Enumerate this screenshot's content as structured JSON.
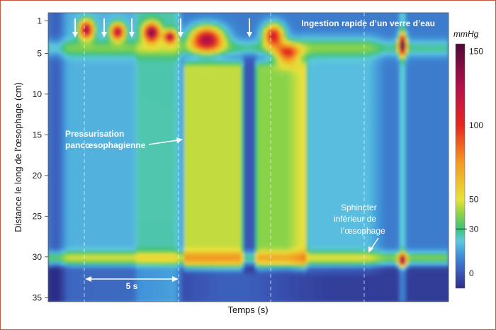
{
  "chart_data": {
    "type": "heatmap",
    "title": "Ingestion rapide d’un verre d’eau",
    "xlabel": "Temps (s)",
    "ylabel": "Distance le long de l’œsophage (cm)",
    "y_ticks": [
      1,
      5,
      10,
      15,
      20,
      25,
      30,
      35
    ],
    "ylim": [
      0,
      35.5
    ],
    "y_inverted": true,
    "colorbar": {
      "unit": "mmHg",
      "ticks": [
        0,
        30,
        50,
        100,
        150
      ],
      "range": [
        -10,
        155
      ],
      "stops": [
        {
          "v": -10,
          "c": "#2c2f86"
        },
        {
          "v": 0,
          "c": "#3a55b4"
        },
        {
          "v": 12,
          "c": "#3f8fd8"
        },
        {
          "v": 22,
          "c": "#5ec9e0"
        },
        {
          "v": 30,
          "c": "#3fc27a"
        },
        {
          "v": 40,
          "c": "#8ad34a"
        },
        {
          "v": 50,
          "c": "#e8e23a"
        },
        {
          "v": 75,
          "c": "#f39a22"
        },
        {
          "v": 100,
          "c": "#e5271f"
        },
        {
          "v": 125,
          "c": "#b5124a"
        },
        {
          "v": 155,
          "c": "#4e0a3a"
        }
      ]
    },
    "annotations": {
      "pressurisation_line1": "Pressurisation",
      "pressurisation_line2": "pancœsophagienne",
      "sphincter_line1": "Sphincter",
      "sphincter_line2": "inférieur de",
      "sphincter_line3": "l’œsophage",
      "scale_bar": "5 s"
    }
  }
}
